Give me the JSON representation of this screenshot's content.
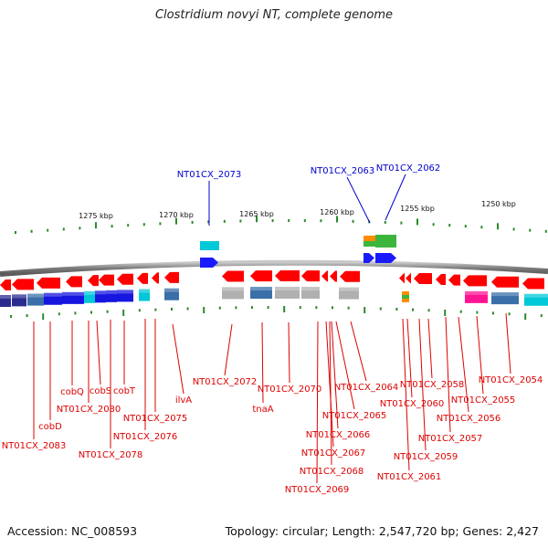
{
  "title": "Clostridium novyi NT, complete genome",
  "footer": {
    "accession": "Accession: NC_008593",
    "stats": "Topology: circular; Length: 2,547,720 bp; Genes: 2,427"
  },
  "scale": {
    "unit": "kbp",
    "ticks": [
      {
        "label": "1275 kbp"
      },
      {
        "label": "1270 kbp"
      },
      {
        "label": "1265 kbp"
      },
      {
        "label": "1260 kbp"
      },
      {
        "label": "1255 kbp"
      },
      {
        "label": "1250 kbp"
      }
    ]
  },
  "colors": {
    "backbone": "#888888",
    "gene_forward": "#1a1aff",
    "gene_reverse": "#ff0000",
    "label_forward": "#0000cc",
    "label_reverse": "#dd0000",
    "tick": "#2a8a2a",
    "cog": [
      "#2b2b8f",
      "#3a6fa8",
      "#1616e0",
      "#00c8d8",
      "#8a8a8a",
      "#b0b0b0",
      "#ff1493",
      "#3db53d",
      "#ff8c00"
    ]
  },
  "forward_labels": [
    {
      "text": "NT01CX_2073"
    },
    {
      "text": "NT01CX_2063"
    },
    {
      "text": "NT01CX_2062"
    }
  ],
  "reverse_labels": [
    {
      "text": "NT01CX_2083"
    },
    {
      "text": "cobD"
    },
    {
      "text": "cobQ"
    },
    {
      "text": "cobS"
    },
    {
      "text": "NT01CX_2080"
    },
    {
      "text": "cobT"
    },
    {
      "text": "NT01CX_2078"
    },
    {
      "text": "NT01CX_2076"
    },
    {
      "text": "NT01CX_2075"
    },
    {
      "text": "ilvA"
    },
    {
      "text": "NT01CX_2072"
    },
    {
      "text": "tnaA"
    },
    {
      "text": "NT01CX_2070"
    },
    {
      "text": "NT01CX_2069"
    },
    {
      "text": "NT01CX_2068"
    },
    {
      "text": "NT01CX_2067"
    },
    {
      "text": "NT01CX_2066"
    },
    {
      "text": "NT01CX_2065"
    },
    {
      "text": "NT01CX_2064"
    },
    {
      "text": "NT01CX_2061"
    },
    {
      "text": "NT01CX_2060"
    },
    {
      "text": "NT01CX_2059"
    },
    {
      "text": "NT01CX_2058"
    },
    {
      "text": "NT01CX_2057"
    },
    {
      "text": "NT01CX_2056"
    },
    {
      "text": "NT01CX_2055"
    },
    {
      "text": "NT01CX_2054"
    }
  ]
}
